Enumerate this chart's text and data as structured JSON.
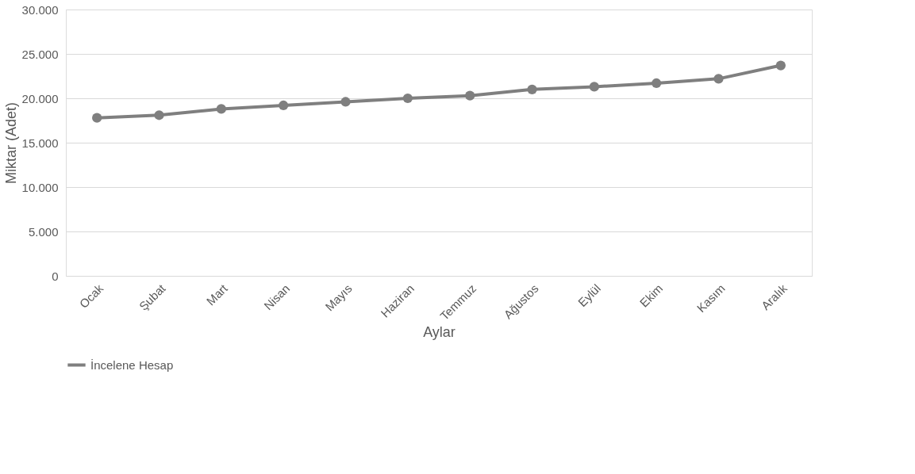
{
  "chart_data": {
    "type": "line",
    "xlabel": "Aylar",
    "ylabel": "Miktar (Adet)",
    "categories": [
      "Ocak",
      "Şubat",
      "Mart",
      "Nisan",
      "Mayıs",
      "Haziran",
      "Temmuz",
      "Ağustos",
      "Eylül",
      "Ekim",
      "Kasım",
      "Aralık"
    ],
    "series": [
      {
        "name": "İncelene Hesap",
        "color": "#7f7f7f",
        "values": [
          17800,
          18100,
          18800,
          19200,
          19600,
          20000,
          20300,
          21000,
          21300,
          21700,
          22200,
          23700
        ]
      }
    ],
    "ylim": [
      0,
      30000
    ],
    "yticks": [
      0,
      {
        "value": 5000,
        "label": "5.000"
      },
      {
        "value": 10000,
        "label": "10.000"
      },
      {
        "value": 15000,
        "label": "15.000"
      },
      {
        "value": 20000,
        "label": "20.000"
      },
      {
        "value": 25000,
        "label": "25.000"
      },
      {
        "value": 30000,
        "label": "30.000"
      }
    ],
    "grid": "y",
    "legend": "bottom",
    "marker": "circle",
    "line_style": "solid"
  }
}
